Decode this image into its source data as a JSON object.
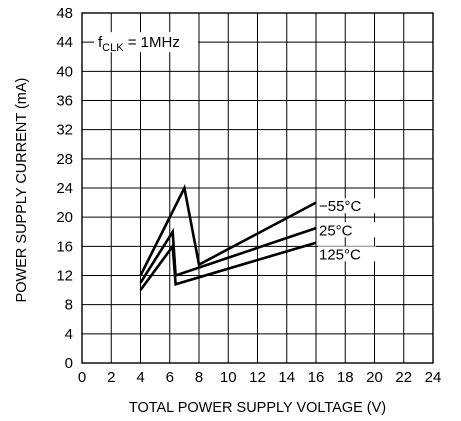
{
  "chart_data": {
    "type": "line",
    "title": "",
    "xlabel": "TOTAL POWER SUPPLY VOLTAGE (V)",
    "ylabel": "POWER SUPPLY CURRENT (mA)",
    "xlim": [
      0,
      24
    ],
    "ylim": [
      0,
      48
    ],
    "xticks": [
      0,
      2,
      4,
      6,
      8,
      10,
      12,
      14,
      16,
      18,
      20,
      22,
      24
    ],
    "yticks": [
      0,
      4,
      8,
      12,
      16,
      20,
      24,
      28,
      32,
      36,
      40,
      44,
      48
    ],
    "grid": true,
    "annotation": {
      "base": "f",
      "subscript": "CLK",
      "rest": " = 1MHz"
    },
    "series": [
      {
        "name": "−55°C",
        "points": [
          [
            4,
            12
          ],
          [
            7,
            24
          ],
          [
            8,
            13.5
          ],
          [
            16,
            22
          ]
        ]
      },
      {
        "name": "25°C",
        "points": [
          [
            4,
            11
          ],
          [
            6.2,
            18
          ],
          [
            6.4,
            12
          ],
          [
            16,
            18.5
          ]
        ]
      },
      {
        "name": "125°C",
        "points": [
          [
            4,
            10
          ],
          [
            6.2,
            16
          ],
          [
            6.4,
            10.8
          ],
          [
            16,
            16.5
          ]
        ]
      }
    ],
    "label_anchor_y": [
      21.5,
      18.2,
      14.9
    ]
  }
}
